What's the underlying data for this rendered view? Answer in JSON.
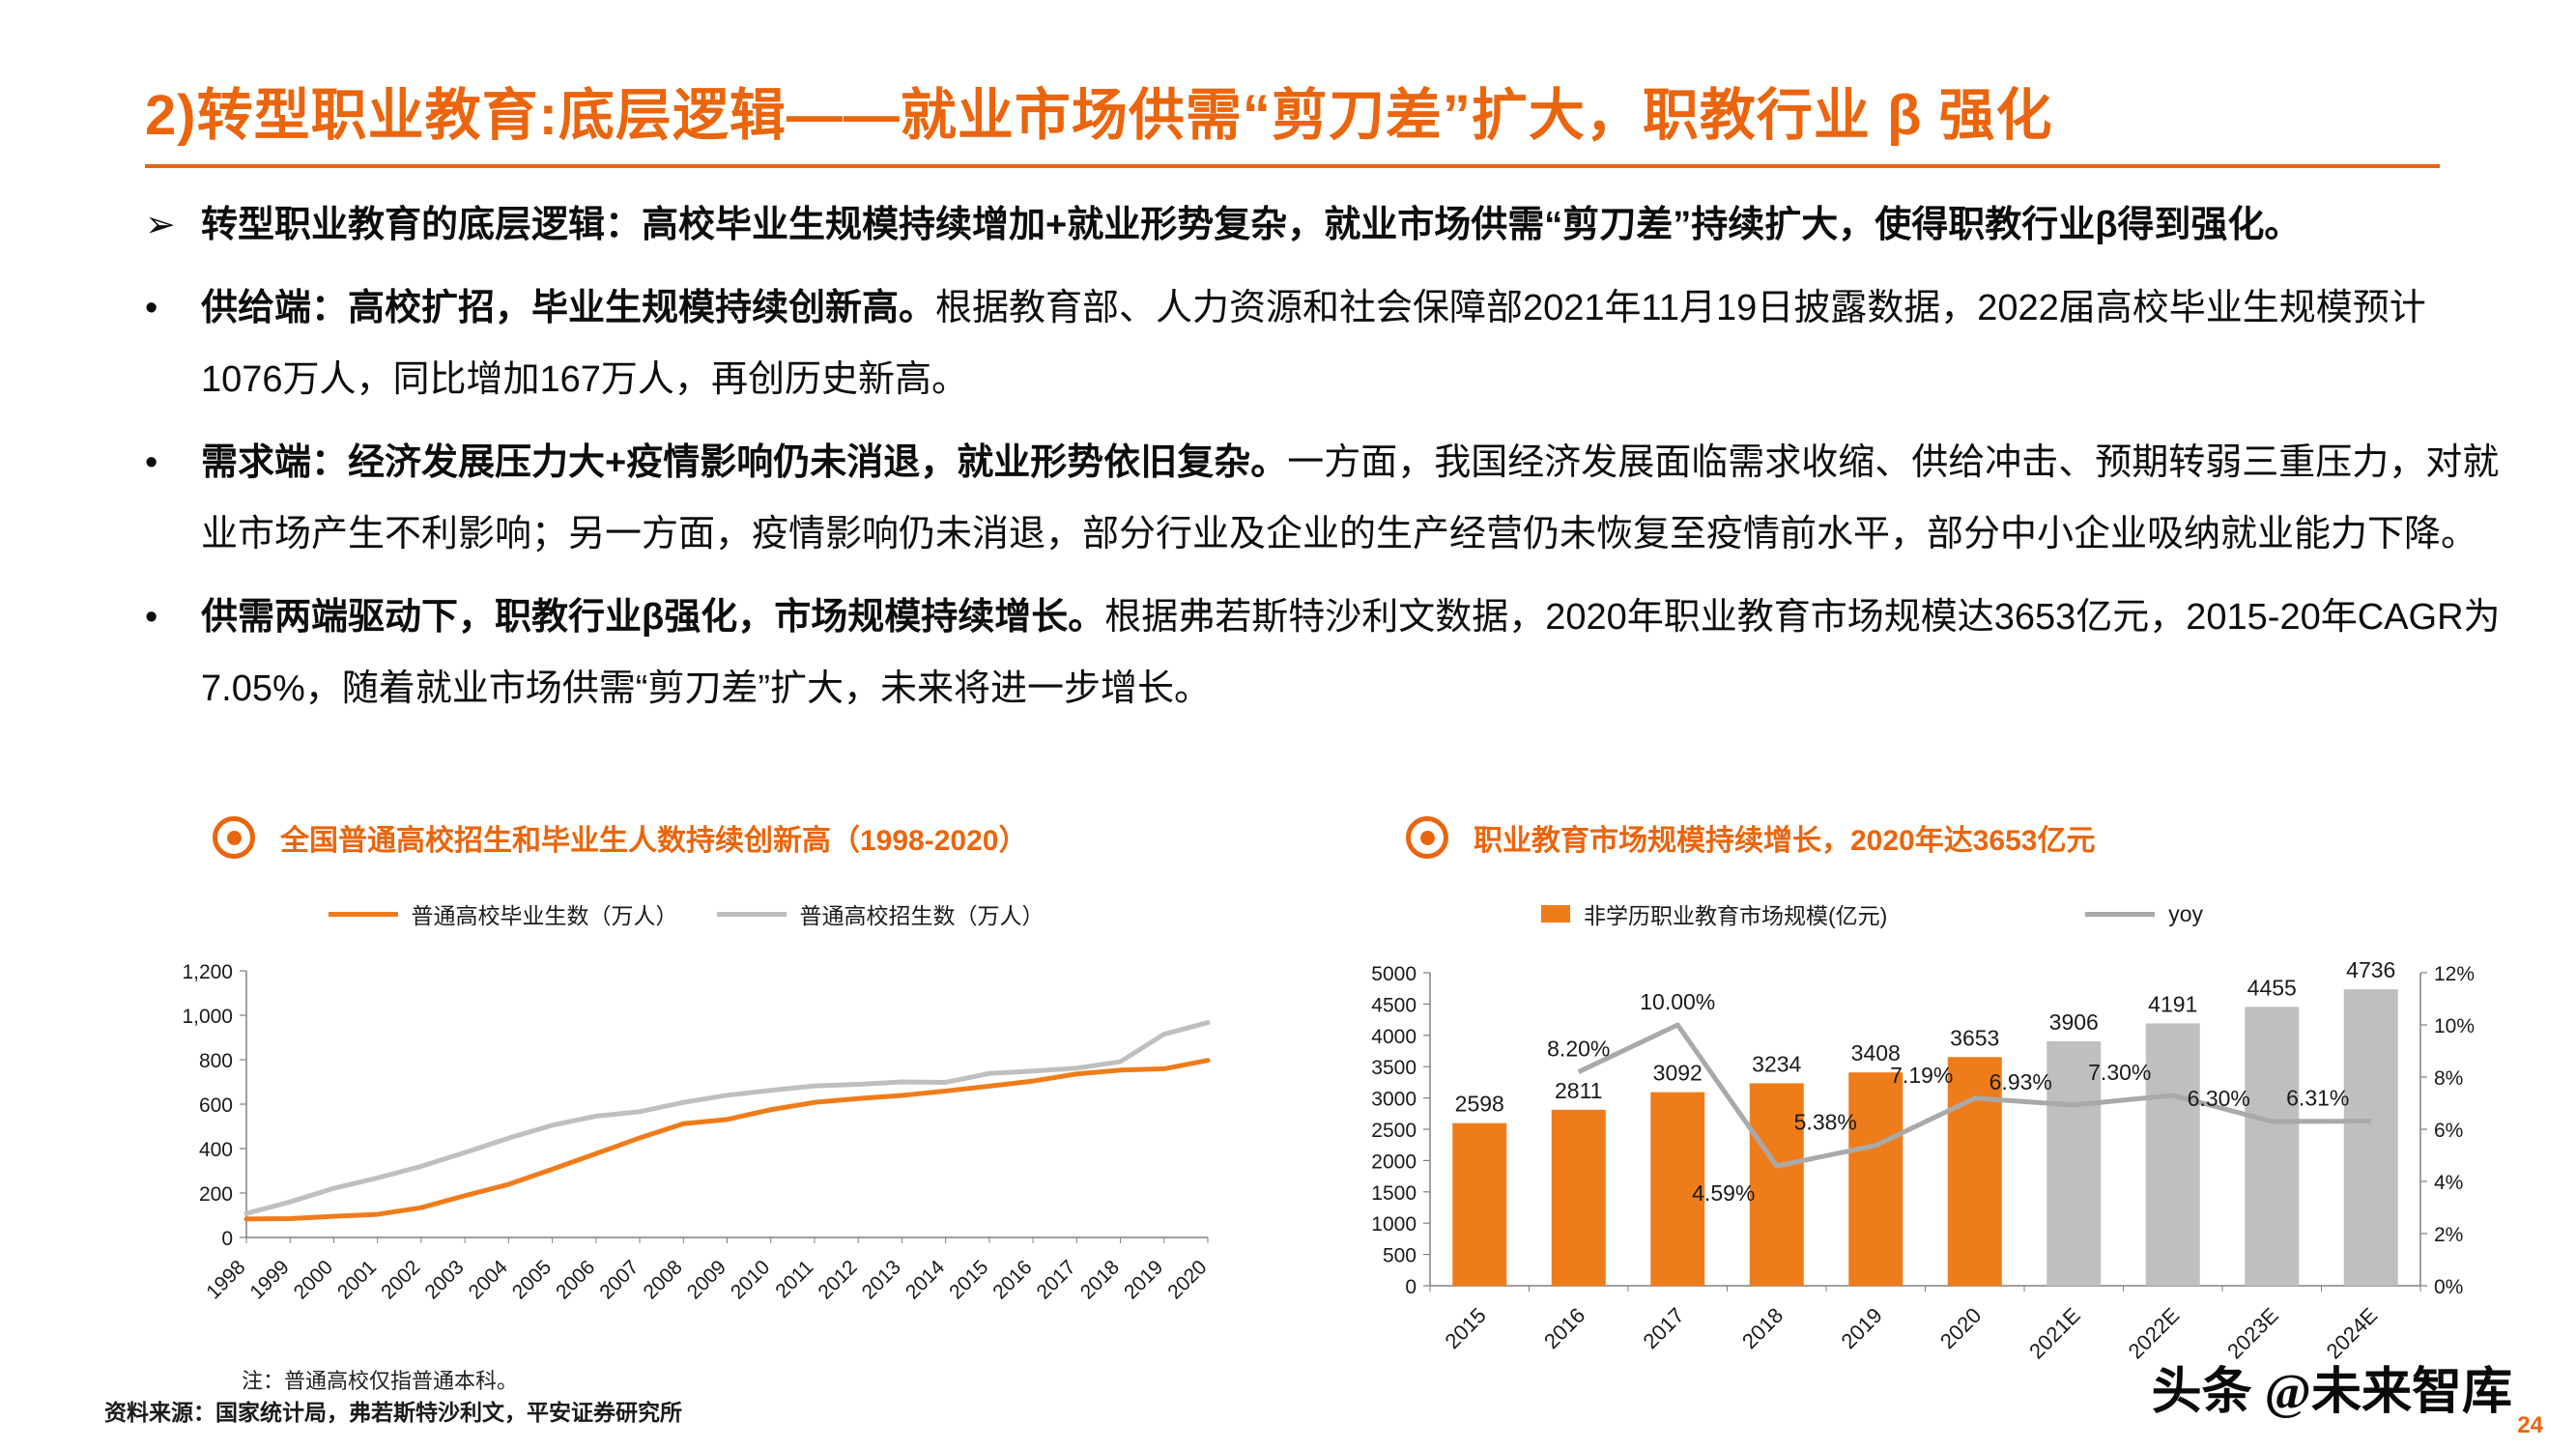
{
  "page": {
    "title": "2)转型职业教育:底层逻辑——就业市场供需“剪刀差”扩大，职教行业 β 强化",
    "source": "资料来源：国家统计局，弗若斯特沙利文，平安证券研究所",
    "watermark": "头条 @未来智库",
    "page_number": "24"
  },
  "colors": {
    "accent": "#EA650D",
    "orange_series": "#EF7C1A",
    "gray_series": "#BFBFBF",
    "yoy_line": "#A9A9A9"
  },
  "bullets": [
    {
      "marker": "➢",
      "bold": "转型职业教育的底层逻辑：高校毕业生规模持续增加+就业形势复杂，就业市场供需“剪刀差”持续扩大，使得职教行业β得到强化。",
      "rest": ""
    },
    {
      "marker": "•",
      "bold": "供给端：高校扩招，毕业生规模持续创新高。",
      "rest": "根据教育部、人力资源和社会保障部2021年11月19日披露数据，2022届高校毕业生规模预计1076万人，同比增加167万人，再创历史新高。"
    },
    {
      "marker": "•",
      "bold": "需求端：经济发展压力大+疫情影响仍未消退，就业形势依旧复杂。",
      "rest": "一方面，我国经济发展面临需求收缩、供给冲击、预期转弱三重压力，对就业市场产生不利影响；另一方面，疫情影响仍未消退，部分行业及企业的生产经营仍未恢复至疫情前水平，部分中小企业吸纳就业能力下降。"
    },
    {
      "marker": "•",
      "bold": "供需两端驱动下，职教行业β强化，市场规模持续增长。",
      "rest": "根据弗若斯特沙利文数据，2020年职业教育市场规模达3653亿元，2015-20年CAGR为7.05%，随着就业市场供需“剪刀差”扩大，未来将进一步增长。"
    }
  ],
  "chart_data": [
    {
      "type": "line",
      "title": "全国普通高校招生和毕业生人数持续创新高（1998-2020）",
      "note": "注：普通高校仅指普通本科。",
      "categories": [
        "1998",
        "1999",
        "2000",
        "2001",
        "2002",
        "2003",
        "2004",
        "2005",
        "2006",
        "2007",
        "2008",
        "2009",
        "2010",
        "2011",
        "2012",
        "2013",
        "2014",
        "2015",
        "2016",
        "2017",
        "2018",
        "2019",
        "2020"
      ],
      "series": [
        {
          "name": "普通高校毕业生数（万人）",
          "color": "#EF7C1A",
          "values": [
            83,
            85,
            95,
            104,
            134,
            188,
            239,
            307,
            377,
            448,
            512,
            531,
            575,
            608,
            625,
            639,
            659,
            681,
            704,
            736,
            753,
            759,
            797
          ]
        },
        {
          "name": "普通高校招生数（万人）",
          "color": "#BFBFBF",
          "values": [
            108,
            160,
            221,
            268,
            320,
            382,
            447,
            505,
            546,
            566,
            608,
            640,
            662,
            682,
            689,
            700,
            698,
            738,
            749,
            762,
            791,
            915,
            967
          ]
        }
      ],
      "ylim": [
        0,
        1200
      ],
      "ytick_step": 200,
      "legend_position": "top",
      "grid": false
    },
    {
      "type": "bar+line",
      "title": "职业教育市场规模持续增长，2020年达3653亿元",
      "categories": [
        "2015",
        "2016",
        "2017",
        "2018",
        "2019",
        "2020",
        "2021E",
        "2022E",
        "2023E",
        "2024E"
      ],
      "bar_series": {
        "name": "非学历职业教育市场规模(亿元)",
        "values": [
          2598,
          2811,
          3092,
          3234,
          3408,
          3653,
          3906,
          4191,
          4455,
          4736
        ],
        "color_actual": "#EF7C1A",
        "color_estimate": "#BFBFBF",
        "estimate_from_index": 6
      },
      "line_series": {
        "name": "yoy",
        "color": "#A9A9A9",
        "values": [
          null,
          8.2,
          10.0,
          4.59,
          5.38,
          7.19,
          6.93,
          7.3,
          6.3,
          6.31
        ],
        "labels": [
          "",
          "8.20%",
          "10.00%",
          "4.59%",
          "5.38%",
          "7.19%",
          "6.93%",
          "7.30%",
          "6.30%",
          "6.31%"
        ],
        "label_dx": [
          0,
          0,
          0,
          -55,
          -52,
          -55,
          -55,
          -55,
          -55,
          -55
        ],
        "label_dy": [
          0,
          -16,
          -16,
          36,
          -16,
          -16,
          -16,
          -16,
          -16,
          -16
        ]
      },
      "left_ylim": [
        0,
        5000
      ],
      "left_ytick_step": 500,
      "right_ylim": [
        0,
        12
      ],
      "right_ytick_step": 2,
      "legend_position": "top",
      "grid": false
    }
  ]
}
